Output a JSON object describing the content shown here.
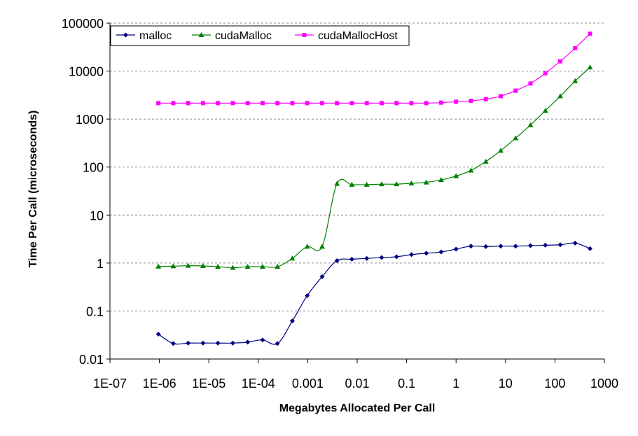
{
  "chart_data": {
    "type": "line",
    "title": "",
    "xlabel": "Megabytes Allocated Per Call",
    "ylabel": "Time Per Call (microseconds)",
    "xscale": "log",
    "yscale": "log",
    "xlim": [
      1e-07,
      1000
    ],
    "ylim": [
      0.01,
      100000
    ],
    "grid": "horizontal dashed",
    "legend_position": "top-left",
    "x_tick_labels": [
      "1E-07",
      "1E-06",
      "1E-05",
      "1E-04",
      "0.001",
      "0.01",
      "0.1",
      "1",
      "10",
      "100",
      "1000"
    ],
    "y_tick_labels": [
      "100000",
      "10000",
      "1000",
      "100",
      "10",
      "1",
      "0.1",
      "0.01"
    ],
    "x": [
      9.5367e-07,
      1.9073e-06,
      3.8147e-06,
      7.6294e-06,
      1.5259e-05,
      3.0518e-05,
      6.1035e-05,
      0.00012207,
      0.00024414,
      0.00048828,
      0.00097656,
      0.0019531,
      0.0039063,
      0.0078125,
      0.015625,
      0.03125,
      0.0625,
      0.125,
      0.25,
      0.5,
      1,
      2,
      4,
      8,
      16,
      32,
      64,
      128,
      256,
      512
    ],
    "series": [
      {
        "name": "malloc",
        "color": "#000080",
        "marker": "diamond",
        "values": [
          0.033,
          0.021,
          0.0215,
          0.0215,
          0.0215,
          0.0215,
          0.0225,
          0.025,
          0.021,
          0.062,
          0.21,
          0.52,
          1.12,
          1.2,
          1.25,
          1.3,
          1.35,
          1.5,
          1.6,
          1.7,
          1.95,
          2.25,
          2.2,
          2.25,
          2.25,
          2.3,
          2.35,
          2.4,
          2.6,
          2.0
        ]
      },
      {
        "name": "cudaMalloc",
        "color": "#008000",
        "marker": "triangle",
        "values": [
          0.85,
          0.86,
          0.88,
          0.87,
          0.84,
          0.8,
          0.84,
          0.84,
          0.84,
          1.25,
          2.2,
          2.2,
          45,
          43,
          43,
          44,
          44,
          46,
          48,
          54,
          65,
          85,
          130,
          220,
          400,
          750,
          1500,
          3000,
          6200,
          12000
        ]
      },
      {
        "name": "cudaMallocHost",
        "color": "#ff00ff",
        "marker": "square",
        "values": [
          2150,
          2150,
          2150,
          2150,
          2150,
          2150,
          2150,
          2150,
          2150,
          2150,
          2150,
          2150,
          2150,
          2150,
          2150,
          2150,
          2150,
          2150,
          2150,
          2200,
          2300,
          2400,
          2600,
          3000,
          3900,
          5500,
          9000,
          16000,
          30000,
          60000
        ]
      }
    ]
  }
}
